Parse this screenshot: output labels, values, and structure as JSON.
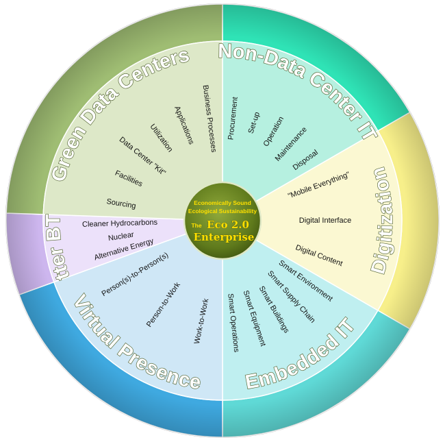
{
  "center": {
    "line1": "Economically Sound",
    "line2": "Ecological Sustainability",
    "prefix": "The",
    "eco": "Eco 2.0",
    "enterprise": "Enterprise"
  },
  "segments": [
    {
      "key": "non-data-center-it",
      "title": "Non-Data Center IT",
      "outer_color": "#2fe3b6",
      "inner_color": "#b6f0e0",
      "start": -90,
      "end": -30,
      "title_at_top": true,
      "items": [
        "Procurement",
        "Set-up",
        "Operation",
        "Maintenance",
        "Disposal"
      ]
    },
    {
      "key": "digitization",
      "title": "Digitization",
      "outer_color": "#f7ef8a",
      "inner_color": "#fbf8d2",
      "start": -30,
      "end": 30,
      "title_at_top": false,
      "items": [
        "\"Mobile Everything\"",
        "Digital Interface",
        "Digital Content"
      ]
    },
    {
      "key": "embedded-it",
      "title": "Embedded IT",
      "outer_color": "#5fd9d6",
      "inner_color": "#bfeff0",
      "start": 30,
      "end": 90,
      "title_at_top": false,
      "items": [
        "Smart Environment",
        "Smart Supply Chain",
        "Smart Buildings",
        "Smart Equipment",
        "Smart Operations"
      ]
    },
    {
      "key": "virtual-presence",
      "title": "Virtual Presence",
      "outer_color": "#3fa9e0",
      "inner_color": "#cfe7f6",
      "start": 90,
      "end": 160,
      "title_at_top": false,
      "items": [
        "Work-to-Work",
        "Person-to-Work",
        "Person(s)-to-Person(s)"
      ]
    },
    {
      "key": "better-btus",
      "title": "Better BTUs",
      "outer_color": "#cdb6ee",
      "inner_color": "#ece1fa",
      "start": 160,
      "end": 182,
      "title_at_top": true,
      "items": [
        "Alternative Energy",
        "Nuclear",
        "Cleaner Hydrocarbons"
      ]
    },
    {
      "key": "green-data-centers",
      "title": "Green Data Centers",
      "outer_color": "#9fbd73",
      "inner_color": "#dde8c8",
      "start": 182,
      "end": 270,
      "title_at_top": true,
      "items": [
        "Sourcing",
        "Facilities",
        "Data Center \"Kit\"",
        "Utilization",
        "Applications",
        "Business Processes"
      ]
    }
  ]
}
